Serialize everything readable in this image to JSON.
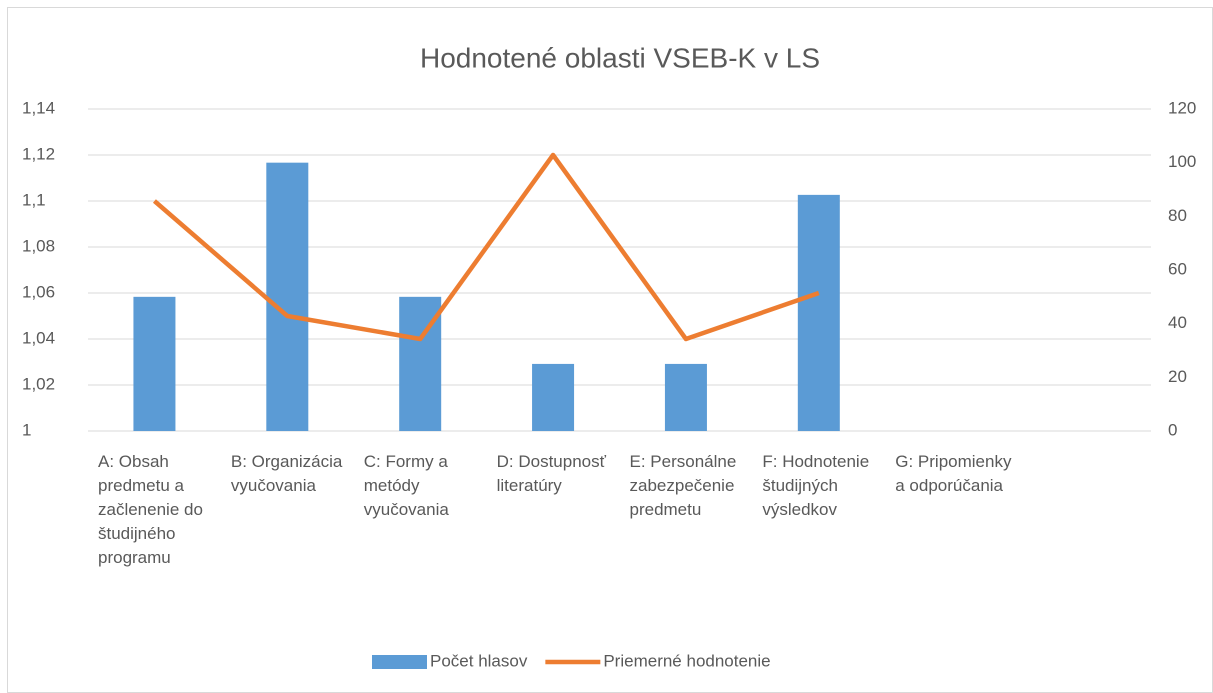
{
  "chart_data": {
    "type": "bar-line",
    "title": "Hodnotené oblasti VSEB-K v LS",
    "categories": [
      "A: Obsah predmetu a začlenenie do študijného programu",
      "B: Organizácia vyučovania",
      "C: Formy a metódy vyučovania",
      "D: Dostupnosť literatúry",
      "E: Personálne zabezpečenie predmetu",
      "F: Hodnotenie študijných výsledkov",
      "G: Pripomienky a odporúčania",
      null
    ],
    "series": [
      {
        "name": "Počet hlasov",
        "type": "bar",
        "axis": "y2",
        "color": "#5b9bd5",
        "values": [
          50,
          100,
          50,
          25,
          25,
          88,
          null,
          null
        ]
      },
      {
        "name": "Priemerné hodnotenie",
        "type": "line",
        "color": "#ed7d31",
        "values": [
          1.1,
          1.05,
          1.04,
          1.12,
          1.04,
          1.06,
          null,
          null
        ]
      }
    ],
    "ylim": [
      1,
      1.14
    ],
    "yticks": [
      1,
      {
        "value": 1.02,
        "label": "1,02"
      },
      {
        "value": 1.04,
        "label": "1,04"
      },
      {
        "value": 1.06,
        "label": "1,06"
      },
      {
        "value": 1.08,
        "label": "1,08"
      },
      {
        "value": 1.1,
        "label": "1,1"
      },
      {
        "value": 1.12,
        "label": "1,12"
      },
      {
        "value": 1.14,
        "label": "1,14"
      }
    ],
    "y2lim": [
      0,
      120
    ],
    "y2ticks": [
      0,
      20,
      40,
      60,
      80,
      100,
      120
    ],
    "grid": true,
    "legend": "bottom"
  }
}
